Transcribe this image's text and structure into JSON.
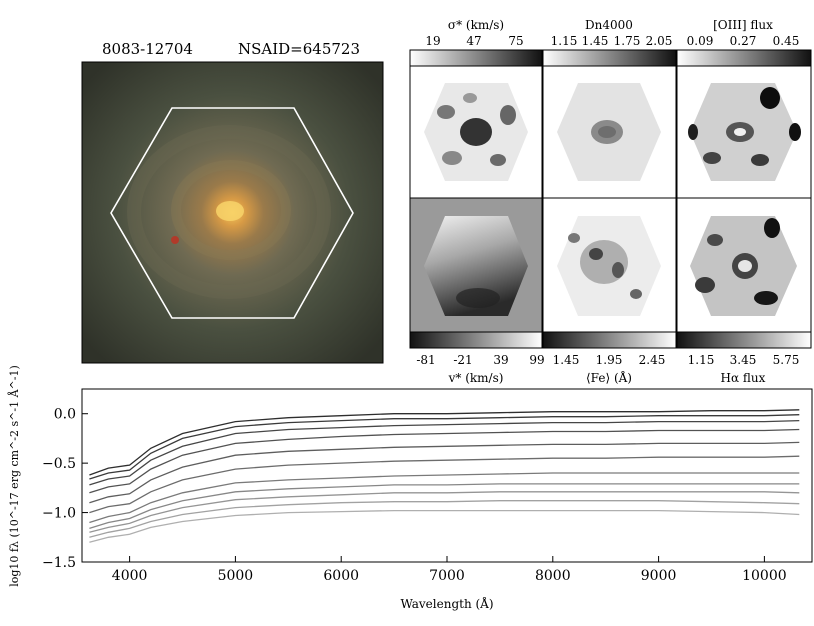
{
  "header": {
    "galaxy_id": "8083-12704",
    "nsaid": "NSAID=645723"
  },
  "maps": [
    {
      "name": "sigma-star",
      "label": "σ* (km/s)",
      "ticks": [
        "19",
        "47",
        "75"
      ],
      "colorbar_position": "top"
    },
    {
      "name": "dn4000",
      "label": "Dn4000",
      "ticks": [
        "1.15",
        "1.45",
        "1.75",
        "2.05"
      ],
      "colorbar_position": "top"
    },
    {
      "name": "oiii-flux",
      "label": "[OIII] flux",
      "ticks": [
        "0.09",
        "0.27",
        "0.45"
      ],
      "colorbar_position": "top"
    },
    {
      "name": "v-star",
      "label": "v* (km/s)",
      "ticks": [
        "-81",
        "-21",
        "39",
        "99"
      ],
      "colorbar_position": "bottom"
    },
    {
      "name": "fe",
      "label": "⟨Fe⟩ (Å)",
      "ticks": [
        "1.45",
        "1.95",
        "2.45"
      ],
      "colorbar_position": "bottom"
    },
    {
      "name": "halpha-flux",
      "label": "Hα flux",
      "ticks": [
        "1.15",
        "3.45",
        "5.75"
      ],
      "colorbar_position": "bottom"
    }
  ],
  "chart_data": {
    "type": "line",
    "xlabel": "Wavelength (Å)",
    "ylabel": "log10 fλ (10^-17 erg cm^-2 s^-1 Å^-1)",
    "xlim": [
      3550,
      10450
    ],
    "ylim": [
      -1.5,
      0.25
    ],
    "xticks": [
      4000,
      5000,
      6000,
      7000,
      8000,
      9000,
      10000
    ],
    "yticks": [
      0.0,
      -0.5,
      -1.0,
      -1.5
    ],
    "ytick_labels": [
      "0.0",
      "−0.5",
      "−1.0",
      "−1.5"
    ],
    "grid": false,
    "colors_note": "spectra shaded from dark gray (center) to light gray (outskirts)",
    "series": [
      {
        "color": "#2e2e2e",
        "values": [
          [
            3620,
            -0.62
          ],
          [
            3800,
            -0.55
          ],
          [
            4000,
            -0.52
          ],
          [
            4200,
            -0.35
          ],
          [
            4500,
            -0.2
          ],
          [
            5000,
            -0.08
          ],
          [
            5500,
            -0.04
          ],
          [
            6000,
            -0.02
          ],
          [
            6500,
            0.0
          ],
          [
            7000,
            0.0
          ],
          [
            7500,
            0.01
          ],
          [
            8000,
            0.02
          ],
          [
            8500,
            0.02
          ],
          [
            9000,
            0.02
          ],
          [
            9500,
            0.03
          ],
          [
            10000,
            0.03
          ],
          [
            10330,
            0.04
          ]
        ]
      },
      {
        "color": "#3a3a3a",
        "values": [
          [
            3620,
            -0.66
          ],
          [
            3800,
            -0.6
          ],
          [
            4000,
            -0.57
          ],
          [
            4200,
            -0.4
          ],
          [
            4500,
            -0.25
          ],
          [
            5000,
            -0.13
          ],
          [
            5500,
            -0.09
          ],
          [
            6000,
            -0.07
          ],
          [
            6500,
            -0.05
          ],
          [
            7000,
            -0.05
          ],
          [
            7500,
            -0.04
          ],
          [
            8000,
            -0.03
          ],
          [
            8500,
            -0.03
          ],
          [
            9000,
            -0.02
          ],
          [
            9500,
            -0.02
          ],
          [
            10000,
            -0.02
          ],
          [
            10330,
            -0.01
          ]
        ]
      },
      {
        "color": "#464646",
        "values": [
          [
            3620,
            -0.72
          ],
          [
            3800,
            -0.66
          ],
          [
            4000,
            -0.63
          ],
          [
            4200,
            -0.47
          ],
          [
            4500,
            -0.33
          ],
          [
            5000,
            -0.2
          ],
          [
            5500,
            -0.16
          ],
          [
            6000,
            -0.14
          ],
          [
            6500,
            -0.12
          ],
          [
            7000,
            -0.11
          ],
          [
            7500,
            -0.1
          ],
          [
            8000,
            -0.09
          ],
          [
            8500,
            -0.09
          ],
          [
            9000,
            -0.08
          ],
          [
            9500,
            -0.08
          ],
          [
            10000,
            -0.08
          ],
          [
            10330,
            -0.07
          ]
        ]
      },
      {
        "color": "#525252",
        "values": [
          [
            3620,
            -0.8
          ],
          [
            3800,
            -0.74
          ],
          [
            4000,
            -0.71
          ],
          [
            4200,
            -0.56
          ],
          [
            4500,
            -0.42
          ],
          [
            5000,
            -0.3
          ],
          [
            5500,
            -0.26
          ],
          [
            6000,
            -0.23
          ],
          [
            6500,
            -0.21
          ],
          [
            7000,
            -0.2
          ],
          [
            7500,
            -0.19
          ],
          [
            8000,
            -0.18
          ],
          [
            8500,
            -0.18
          ],
          [
            9000,
            -0.17
          ],
          [
            9500,
            -0.17
          ],
          [
            10000,
            -0.17
          ],
          [
            10330,
            -0.16
          ]
        ]
      },
      {
        "color": "#5e5e5e",
        "values": [
          [
            3620,
            -0.9
          ],
          [
            3800,
            -0.84
          ],
          [
            4000,
            -0.81
          ],
          [
            4200,
            -0.67
          ],
          [
            4500,
            -0.54
          ],
          [
            5000,
            -0.42
          ],
          [
            5500,
            -0.38
          ],
          [
            6000,
            -0.36
          ],
          [
            6500,
            -0.34
          ],
          [
            7000,
            -0.33
          ],
          [
            7500,
            -0.32
          ],
          [
            8000,
            -0.31
          ],
          [
            8500,
            -0.31
          ],
          [
            9000,
            -0.3
          ],
          [
            9500,
            -0.3
          ],
          [
            10000,
            -0.3
          ],
          [
            10330,
            -0.29
          ]
        ]
      },
      {
        "color": "#6c6c6c",
        "values": [
          [
            3620,
            -1.0
          ],
          [
            3800,
            -0.94
          ],
          [
            4000,
            -0.91
          ],
          [
            4200,
            -0.79
          ],
          [
            4500,
            -0.67
          ],
          [
            5000,
            -0.56
          ],
          [
            5500,
            -0.52
          ],
          [
            6000,
            -0.5
          ],
          [
            6500,
            -0.48
          ],
          [
            7000,
            -0.47
          ],
          [
            7500,
            -0.46
          ],
          [
            8000,
            -0.45
          ],
          [
            8500,
            -0.45
          ],
          [
            9000,
            -0.44
          ],
          [
            9500,
            -0.44
          ],
          [
            10000,
            -0.44
          ],
          [
            10330,
            -0.43
          ]
        ]
      },
      {
        "color": "#7a7a7a",
        "values": [
          [
            3620,
            -1.1
          ],
          [
            3800,
            -1.04
          ],
          [
            4000,
            -1.0
          ],
          [
            4200,
            -0.9
          ],
          [
            4500,
            -0.8
          ],
          [
            5000,
            -0.7
          ],
          [
            5500,
            -0.67
          ],
          [
            6000,
            -0.65
          ],
          [
            6500,
            -0.63
          ],
          [
            7000,
            -0.62
          ],
          [
            7500,
            -0.61
          ],
          [
            8000,
            -0.6
          ],
          [
            8500,
            -0.6
          ],
          [
            9000,
            -0.6
          ],
          [
            9500,
            -0.6
          ],
          [
            10000,
            -0.6
          ],
          [
            10330,
            -0.6
          ]
        ]
      },
      {
        "color": "#878787",
        "values": [
          [
            3620,
            -1.16
          ],
          [
            3800,
            -1.1
          ],
          [
            4000,
            -1.06
          ],
          [
            4200,
            -0.97
          ],
          [
            4500,
            -0.88
          ],
          [
            5000,
            -0.79
          ],
          [
            5500,
            -0.76
          ],
          [
            6000,
            -0.74
          ],
          [
            6500,
            -0.72
          ],
          [
            7000,
            -0.72
          ],
          [
            7500,
            -0.71
          ],
          [
            8000,
            -0.71
          ],
          [
            8500,
            -0.71
          ],
          [
            9000,
            -0.71
          ],
          [
            9500,
            -0.71
          ],
          [
            10000,
            -0.71
          ],
          [
            10330,
            -0.71
          ]
        ]
      },
      {
        "color": "#959595",
        "values": [
          [
            3620,
            -1.2
          ],
          [
            3800,
            -1.15
          ],
          [
            4000,
            -1.11
          ],
          [
            4200,
            -1.03
          ],
          [
            4500,
            -0.95
          ],
          [
            5000,
            -0.87
          ],
          [
            5500,
            -0.84
          ],
          [
            6000,
            -0.82
          ],
          [
            6500,
            -0.8
          ],
          [
            7000,
            -0.8
          ],
          [
            7500,
            -0.79
          ],
          [
            8000,
            -0.79
          ],
          [
            8500,
            -0.79
          ],
          [
            9000,
            -0.79
          ],
          [
            9500,
            -0.79
          ],
          [
            10000,
            -0.79
          ],
          [
            10330,
            -0.8
          ]
        ]
      },
      {
        "color": "#a2a2a2",
        "values": [
          [
            3620,
            -1.25
          ],
          [
            3800,
            -1.2
          ],
          [
            4000,
            -1.16
          ],
          [
            4200,
            -1.09
          ],
          [
            4500,
            -1.02
          ],
          [
            5000,
            -0.95
          ],
          [
            5500,
            -0.92
          ],
          [
            6000,
            -0.9
          ],
          [
            6500,
            -0.89
          ],
          [
            7000,
            -0.89
          ],
          [
            7500,
            -0.88
          ],
          [
            8000,
            -0.88
          ],
          [
            8500,
            -0.88
          ],
          [
            9000,
            -0.88
          ],
          [
            9500,
            -0.89
          ],
          [
            10000,
            -0.9
          ],
          [
            10330,
            -0.91
          ]
        ]
      },
      {
        "color": "#afafaf",
        "values": [
          [
            3620,
            -1.3
          ],
          [
            3800,
            -1.25
          ],
          [
            4000,
            -1.22
          ],
          [
            4200,
            -1.15
          ],
          [
            4500,
            -1.09
          ],
          [
            5000,
            -1.03
          ],
          [
            5500,
            -1.0
          ],
          [
            6000,
            -0.99
          ],
          [
            6500,
            -0.98
          ],
          [
            7000,
            -0.98
          ],
          [
            7500,
            -0.98
          ],
          [
            8000,
            -0.98
          ],
          [
            8500,
            -0.98
          ],
          [
            9000,
            -0.98
          ],
          [
            9500,
            -0.99
          ],
          [
            10000,
            -1.0
          ],
          [
            10330,
            -1.02
          ]
        ]
      }
    ]
  }
}
